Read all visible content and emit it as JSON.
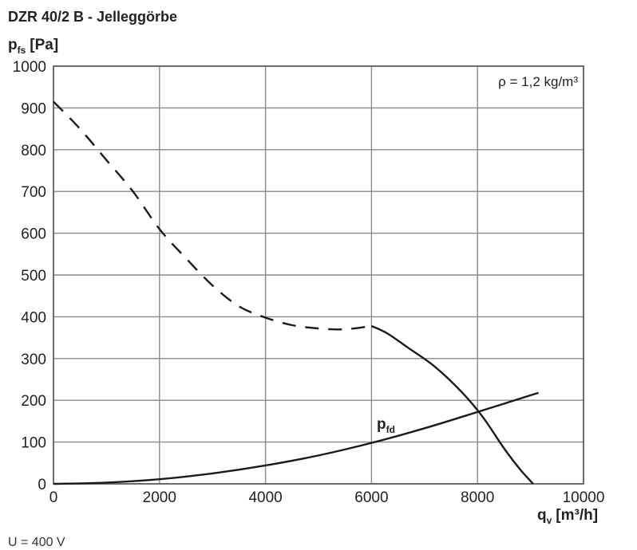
{
  "chart_data": {
    "type": "line",
    "title": "DZR 40/2 B - Jelleggörbe",
    "ylabel": {
      "main": "p",
      "sub": "fs",
      "unit": "[Pa]"
    },
    "xlabel": {
      "main": "q",
      "sub": "v",
      "unit": "[m³/h]"
    },
    "xlim": [
      0,
      10000
    ],
    "ylim": [
      0,
      1000
    ],
    "xticks": [
      0,
      2000,
      4000,
      6000,
      8000,
      10000
    ],
    "yticks": [
      0,
      100,
      200,
      300,
      400,
      500,
      600,
      700,
      800,
      900,
      1000
    ],
    "grid": true,
    "annotation": "ρ = 1,2 kg/m³",
    "series": [
      {
        "style": "dashed",
        "x": [
          0,
          500,
          1000,
          1500,
          2000,
          2500,
          3000,
          3500,
          4000,
          4500,
          5000,
          5500,
          6000
        ],
        "y": [
          915,
          850,
          775,
          700,
          610,
          540,
          475,
          425,
          398,
          380,
          372,
          370,
          378
        ]
      },
      {
        "style": "solid",
        "x": [
          6000,
          6300,
          6700,
          7200,
          7700,
          8100,
          8500,
          8800,
          9050
        ],
        "y": [
          378,
          360,
          325,
          280,
          220,
          160,
          85,
          35,
          0
        ]
      },
      {
        "name": "p fd",
        "label": {
          "main": "p",
          "sub": "fd"
        },
        "style": "solid",
        "x": [
          0,
          1000,
          2000,
          3000,
          4000,
          5000,
          6000,
          7000,
          8000,
          9150
        ],
        "y": [
          0,
          3,
          11,
          25,
          44,
          68,
          98,
          133,
          172,
          218
        ]
      }
    ]
  },
  "footer_text": "U = 400 V"
}
